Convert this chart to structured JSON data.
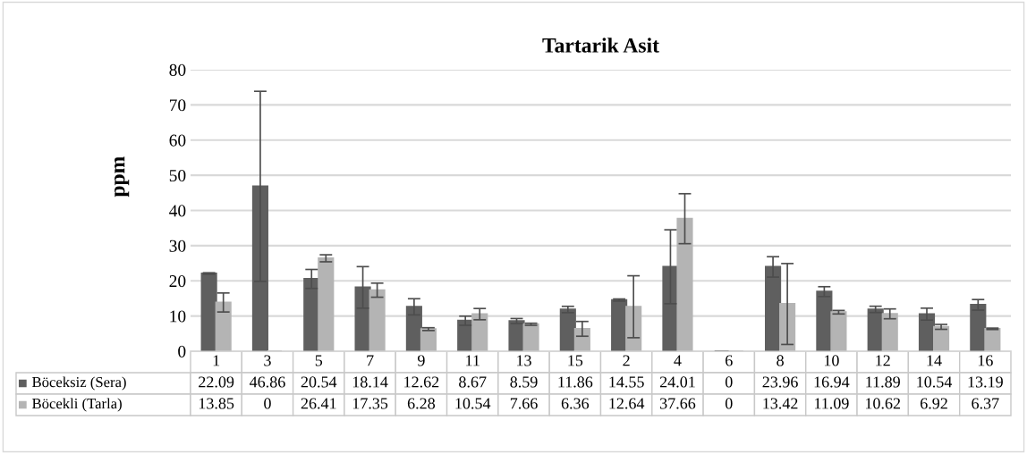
{
  "chart_data": {
    "type": "bar",
    "title": "Tartarik Asit",
    "ylabel": "ppm",
    "categories": [
      "1",
      "3",
      "5",
      "7",
      "9",
      "11",
      "13",
      "15",
      "2",
      "4",
      "6",
      "8",
      "10",
      "12",
      "14",
      "16"
    ],
    "series": [
      {
        "name": "Böceksiz (Sera)",
        "color": "#5f5f5f",
        "values": [
          22.09,
          46.86,
          20.54,
          18.14,
          12.62,
          8.67,
          8.59,
          11.86,
          14.55,
          24.01,
          0,
          23.96,
          16.94,
          11.89,
          10.54,
          13.19
        ],
        "errors": [
          0.2,
          27.0,
          2.7,
          5.9,
          2.3,
          1.3,
          0.7,
          0.9,
          0.3,
          10.5,
          null,
          2.9,
          1.4,
          0.9,
          1.7,
          1.5
        ]
      },
      {
        "name": "Böcekli (Tarla)",
        "color": "#b4b4b4",
        "values": [
          13.85,
          0,
          26.41,
          17.35,
          6.28,
          10.54,
          7.66,
          6.36,
          12.64,
          37.66,
          0,
          13.42,
          11.09,
          10.62,
          6.92,
          6.37
        ],
        "errors": [
          2.7,
          null,
          1.0,
          2.0,
          0.4,
          1.6,
          0.3,
          2.1,
          8.8,
          7.1,
          null,
          11.5,
          0.5,
          1.4,
          0.7,
          0.2
        ]
      }
    ],
    "ylim": [
      0,
      80
    ],
    "yticks": [
      0,
      10,
      20,
      30,
      40,
      50,
      60,
      70,
      80
    ],
    "grid": "y",
    "legend": "bottom",
    "data_labels": true
  }
}
